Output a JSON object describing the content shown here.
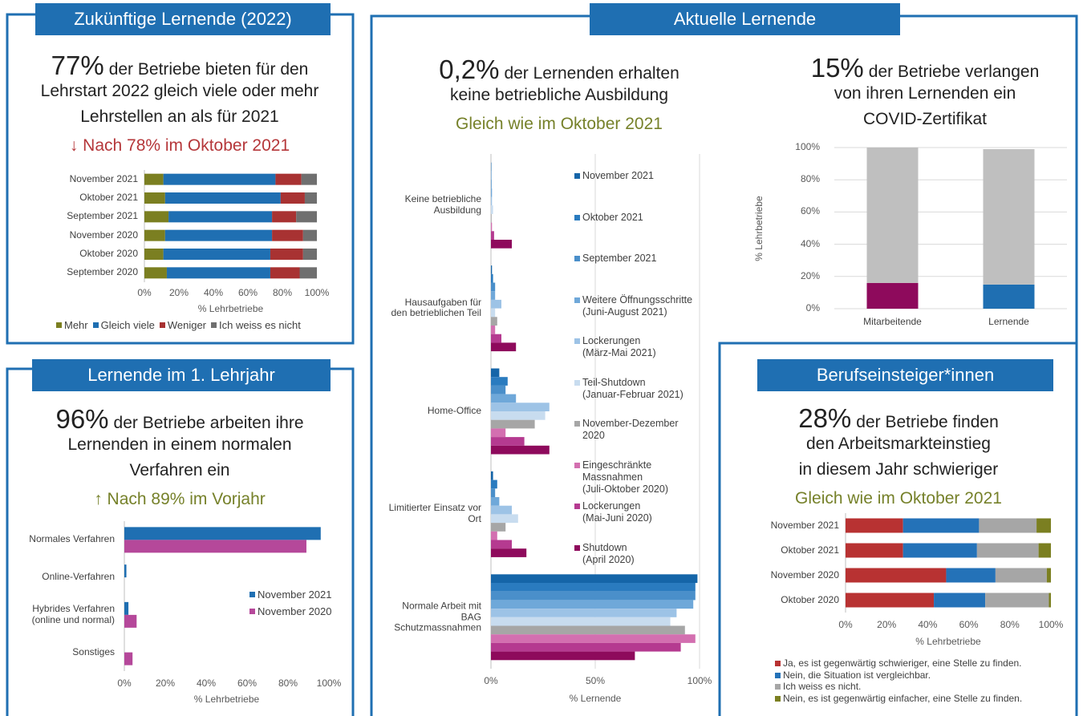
{
  "chart_data": [
    {
      "type": "hstack",
      "panel": "Zukünftige Lernende (2022)",
      "headline": "77%",
      "lines": [
        "der Betriebe bieten für den",
        "Lehrstart 2022 gleich viele oder mehr",
        "Lehrstellen an als für 2021"
      ],
      "note": "↓ Nach 78% im Oktober 2021",
      "note_color": "#b5373a",
      "categories": [
        "November 2021",
        "Oktober 2021",
        "September 2021",
        "November 2020",
        "Oktober 2020",
        "September 2020"
      ],
      "series": [
        {
          "name": "Mehr",
          "color": "#7b7f21",
          "values": [
            11,
            12,
            14,
            12,
            11,
            13
          ]
        },
        {
          "name": "Gleich viele",
          "color": "#1f6fb2",
          "values": [
            65,
            67,
            60,
            62,
            62,
            60
          ]
        },
        {
          "name": "Weniger",
          "color": "#a83232",
          "values": [
            15,
            14,
            14,
            18,
            19,
            17
          ]
        },
        {
          "name": "Ich weiss es nicht",
          "color": "#6f6f6f",
          "values": [
            9,
            7,
            12,
            8,
            8,
            10
          ]
        }
      ],
      "xlim": [
        0,
        100
      ],
      "xticks": [
        {
          "value": 0,
          "label": "0%"
        },
        {
          "value": 20,
          "label": "20%"
        },
        {
          "value": 40,
          "label": "40%"
        },
        {
          "value": 60,
          "label": "60%"
        },
        {
          "value": 80,
          "label": "80%"
        },
        {
          "value": 100,
          "label": "100%"
        }
      ],
      "xlabel": "% Lehrbetriebe",
      "legend": "bottom",
      "grid": false
    },
    {
      "type": "hgroup",
      "panel": "Lernende im 1. Lehrjahr",
      "headline": "96%",
      "lines": [
        "der Betriebe arbeiten ihre",
        "Lernenden in einem normalen",
        "Verfahren ein"
      ],
      "note": "↑ Nach 89% im Vorjahr",
      "note_color": "#76812a",
      "categories": [
        "Normales Verfahren",
        "Online-Verfahren",
        "Hybrides Verfahren\n(online und normal)",
        "Sonstiges"
      ],
      "series": [
        {
          "name": "November 2021",
          "color": "#1f6fb2",
          "values": [
            96,
            1,
            2,
            0
          ]
        },
        {
          "name": "November 2020",
          "color": "#b5489a",
          "values": [
            89,
            0,
            6,
            4
          ]
        }
      ],
      "xlim": [
        0,
        100
      ],
      "xticks": [
        {
          "value": 0,
          "label": "0%"
        },
        {
          "value": 20,
          "label": "20%"
        },
        {
          "value": 40,
          "label": "40%"
        },
        {
          "value": 60,
          "label": "60%"
        },
        {
          "value": 80,
          "label": "80%"
        },
        {
          "value": 100,
          "label": "100%"
        }
      ],
      "xlabel": "% Lehrbetriebe",
      "legend": "right",
      "grid": false
    },
    {
      "type": "hgroup",
      "panel": "Aktuelle Lernende",
      "headline": "0,2%",
      "lines": [
        "der Lernenden erhalten",
        "keine betriebliche Ausbildung"
      ],
      "note": "Gleich wie im Oktober 2021",
      "note_color": "#76812a",
      "categories": [
        "Keine betriebliche\nAusbildung",
        "Hausaufgaben für\nden betrieblichen Teil",
        "Home-Office",
        "Limitierter Einsatz vor\nOrt",
        "Normale Arbeit mit\nBAG\nSchutzmassnahmen"
      ],
      "series": [
        {
          "name": "November 2021",
          "color": "#1565a8",
          "values": [
            0.2,
            0.5,
            4,
            1,
            99
          ]
        },
        {
          "name": "Oktober 2021",
          "color": "#2a7bbf",
          "values": [
            0.2,
            1,
            8,
            3,
            98
          ]
        },
        {
          "name": "September 2021",
          "color": "#4a8fca",
          "values": [
            0.3,
            2,
            7,
            2,
            98
          ]
        },
        {
          "name": "Weitere Öffnungsschritte\n(Juni-August 2021)",
          "color": "#6fa8d9",
          "values": [
            0.5,
            2,
            12,
            4,
            97
          ]
        },
        {
          "name": "Lockerungen\n(März-Mai 2021)",
          "color": "#9dc3e6",
          "values": [
            0.5,
            5,
            28,
            10,
            89
          ]
        },
        {
          "name": "Teil-Shutdown\n(Januar-Februar 2021)",
          "color": "#c8dcef",
          "values": [
            1,
            2,
            26,
            13,
            86
          ]
        },
        {
          "name": "November-Dezember\n2020",
          "color": "#a6a6a6",
          "values": [
            0.3,
            3,
            21,
            7,
            93
          ]
        },
        {
          "name": "Eingeschränkte\nMassnahmen\n(Juli-Oktober 2020)",
          "color": "#d36fb0",
          "values": [
            0.5,
            2,
            7,
            3,
            98
          ]
        },
        {
          "name": "Lockerungen\n(Mai-Juni 2020)",
          "color": "#b53a90",
          "values": [
            1.5,
            5,
            16,
            10,
            91
          ]
        },
        {
          "name": "Shutdown\n(April 2020)",
          "color": "#8e0a5c",
          "values": [
            10,
            12,
            28,
            17,
            69
          ]
        }
      ],
      "xlim": [
        0,
        100
      ],
      "xticks": [
        {
          "value": 0,
          "label": "0%"
        },
        {
          "value": 50,
          "label": "50%"
        },
        {
          "value": 100,
          "label": "100%"
        }
      ],
      "xlabel": "% Lernende",
      "legend": "right",
      "grid": true
    },
    {
      "type": "vstack",
      "headline": "15%",
      "lines": [
        "der Betriebe verlangen",
        "von ihren Lernenden ein",
        "COVID-Zertifikat"
      ],
      "categories": [
        "Mitarbeitende",
        "Lernende"
      ],
      "series": [
        {
          "colors": [
            "#8e0a5c",
            "#1f6fb2"
          ],
          "values": [
            16,
            15
          ]
        },
        {
          "color": "#bfbfbf",
          "values": [
            84,
            84
          ]
        }
      ],
      "ylim": [
        0,
        100
      ],
      "yticks": [
        {
          "value": 0,
          "label": "0%"
        },
        {
          "value": 20,
          "label": "20%"
        },
        {
          "value": 40,
          "label": "40%"
        },
        {
          "value": 60,
          "label": "60%"
        },
        {
          "value": 80,
          "label": "80%"
        },
        {
          "value": 100,
          "label": "100%"
        }
      ],
      "ylabel": "% Lehrbetriebe",
      "grid": true
    },
    {
      "type": "hstack",
      "panel": "Berufseinsteiger*innen",
      "headline": "28%",
      "lines": [
        "der Betriebe finden",
        "den Arbeitsmarkteinstieg",
        "in diesem Jahr schwieriger"
      ],
      "note": "Gleich wie im Oktober 2021",
      "note_color": "#76812a",
      "categories": [
        "November 2021",
        "Oktober 2021",
        "November 2020",
        "Oktober 2020"
      ],
      "series": [
        {
          "name": "Ja, es ist gegenwärtig schwieriger, eine Stelle zu finden.",
          "color": "#b83232",
          "values": [
            28,
            28,
            49,
            43
          ]
        },
        {
          "name": "Nein, die Situation ist vergleichbar.",
          "color": "#2472b8",
          "values": [
            37,
            36,
            24,
            25
          ]
        },
        {
          "name": "Ich weiss es nicht.",
          "color": "#a6a6a6",
          "values": [
            28,
            30,
            25,
            31
          ]
        },
        {
          "name": "Nein, es ist gegenwärtig einfacher, eine Stelle zu finden.",
          "color": "#7b7f21",
          "values": [
            7,
            6,
            2,
            1
          ]
        }
      ],
      "xlim": [
        0,
        100
      ],
      "xticks": [
        {
          "value": 0,
          "label": "0%"
        },
        {
          "value": 20,
          "label": "20%"
        },
        {
          "value": 40,
          "label": "40%"
        },
        {
          "value": 60,
          "label": "60%"
        },
        {
          "value": 80,
          "label": "80%"
        },
        {
          "value": 100,
          "label": "100%"
        }
      ],
      "xlabel": "% Lehrbetriebe",
      "legend": "bottom",
      "grid": false
    }
  ]
}
